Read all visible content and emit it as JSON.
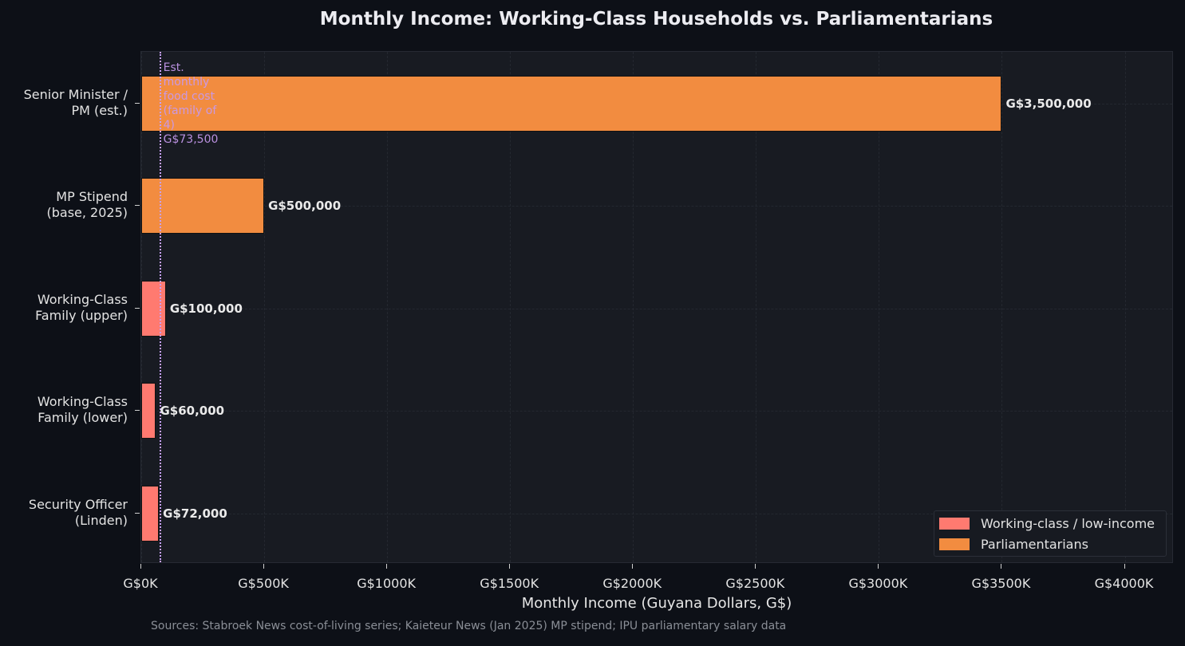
{
  "chart_data": {
    "type": "bar",
    "orientation": "horizontal",
    "title": "Monthly Income: Working-Class Households vs. Parliamentarians",
    "xlabel": "Monthly Income (Guyana Dollars, G$)",
    "ylabel": "",
    "xlim": [
      0,
      4200000
    ],
    "x_ticks": [
      "G$0K",
      "G$500K",
      "G$1000K",
      "G$1500K",
      "G$2000K",
      "G$2500K",
      "G$3000K",
      "G$3500K",
      "G$4000K"
    ],
    "x_tick_values": [
      0,
      500000,
      1000000,
      1500000,
      2000000,
      2500000,
      3000000,
      3500000,
      4000000
    ],
    "categories": [
      "Senior Minister /\nPM (est.)",
      "MP Stipend\n(base, 2025)",
      "Working-Class\nFamily (upper)",
      "Working-Class\nFamily (lower)",
      "Security Officer\n(Linden)"
    ],
    "values": [
      3500000,
      500000,
      100000,
      60000,
      72000
    ],
    "value_labels": [
      "G$3,500,000",
      "G$500,000",
      "G$100,000",
      "G$60,000",
      "G$72,000"
    ],
    "groups": [
      "Parliamentarians",
      "Parliamentarians",
      "Working-class / low-income",
      "Working-class / low-income",
      "Working-class / low-income"
    ],
    "legend": [
      {
        "label": "Working-class / low-income",
        "color": "#ff7a70"
      },
      {
        "label": "Parliamentarians",
        "color": "#f28c40"
      }
    ],
    "legend_position": "lower right",
    "reference_line": {
      "value": 73500,
      "style": "dotted",
      "color": "#c7a0f5",
      "label": "Est. monthly\nfood cost\n(family of 4)\nG$73,500"
    },
    "grid": true,
    "source": "Sources: Stabroek News cost-of-living series; Kaieteur News (Jan 2025) MP stipend; IPU parliamentary salary data"
  }
}
